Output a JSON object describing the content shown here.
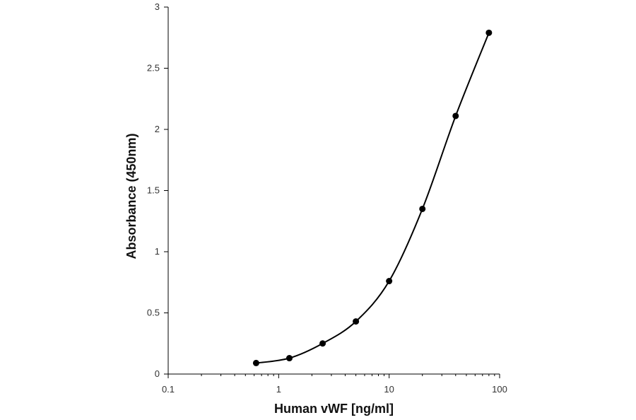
{
  "chart_data": {
    "type": "line",
    "title": "",
    "xlabel": "Human vWF [ng/ml]",
    "ylabel": "Absorbance (450nm)",
    "xscale": "log",
    "xlim": [
      0.1,
      100
    ],
    "ylim": [
      0,
      3
    ],
    "x_ticks": [
      0.1,
      1,
      10,
      100
    ],
    "x_tick_labels": [
      "0.1",
      "1",
      "10",
      "100"
    ],
    "y_ticks": [
      0,
      0.5,
      1,
      1.5,
      2,
      2.5,
      3
    ],
    "y_tick_labels": [
      "0",
      "0.5",
      "1",
      "1.5",
      "2",
      "2.5",
      "3"
    ],
    "grid": false,
    "legend": "none",
    "series": [
      {
        "x": [
          0.625,
          1.25,
          2.5,
          5,
          10,
          20,
          40,
          80
        ],
        "y": [
          0.09,
          0.13,
          0.25,
          0.43,
          0.76,
          1.35,
          2.11,
          2.79
        ],
        "color": "#000000",
        "marker": "circle",
        "smooth": true
      }
    ]
  }
}
